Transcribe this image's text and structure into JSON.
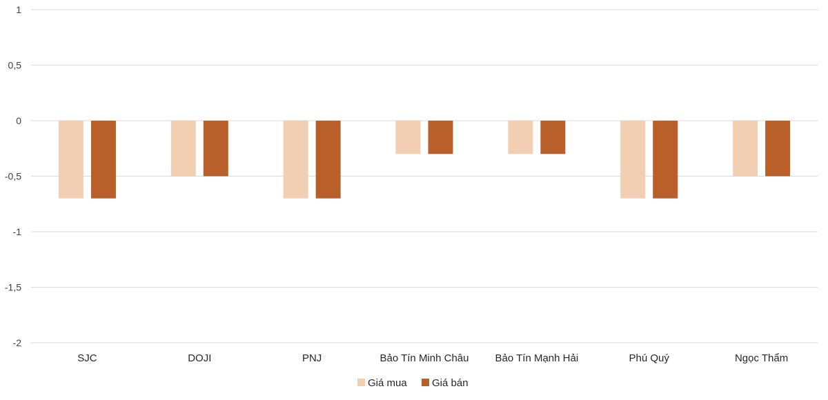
{
  "chart_data": {
    "type": "bar",
    "categories": [
      "SJC",
      "DOJI",
      "PNJ",
      "Bảo Tín Minh Châu",
      "Bảo Tín Mạnh Hải",
      "Phú Quý",
      "Ngọc Thẩm"
    ],
    "series": [
      {
        "name": "Giá mua",
        "color": "#F2CFB3",
        "values": [
          -0.7,
          -0.5,
          -0.7,
          -0.3,
          -0.3,
          -0.7,
          -0.5
        ]
      },
      {
        "name": "Giá bán",
        "color": "#B9602A",
        "values": [
          -0.7,
          -0.5,
          -0.7,
          -0.3,
          -0.3,
          -0.7,
          -0.5
        ]
      }
    ],
    "ylim": [
      -2,
      1
    ],
    "yticks": [
      1,
      0.5,
      0,
      -0.5,
      -1,
      -1.5,
      -2
    ],
    "ytick_labels": [
      "1",
      "0,5",
      "0",
      "-0,5",
      "-1",
      "-1,5",
      "-2"
    ],
    "title": "",
    "xlabel": "",
    "ylabel": "",
    "grid": true,
    "legend_position": "bottom"
  }
}
